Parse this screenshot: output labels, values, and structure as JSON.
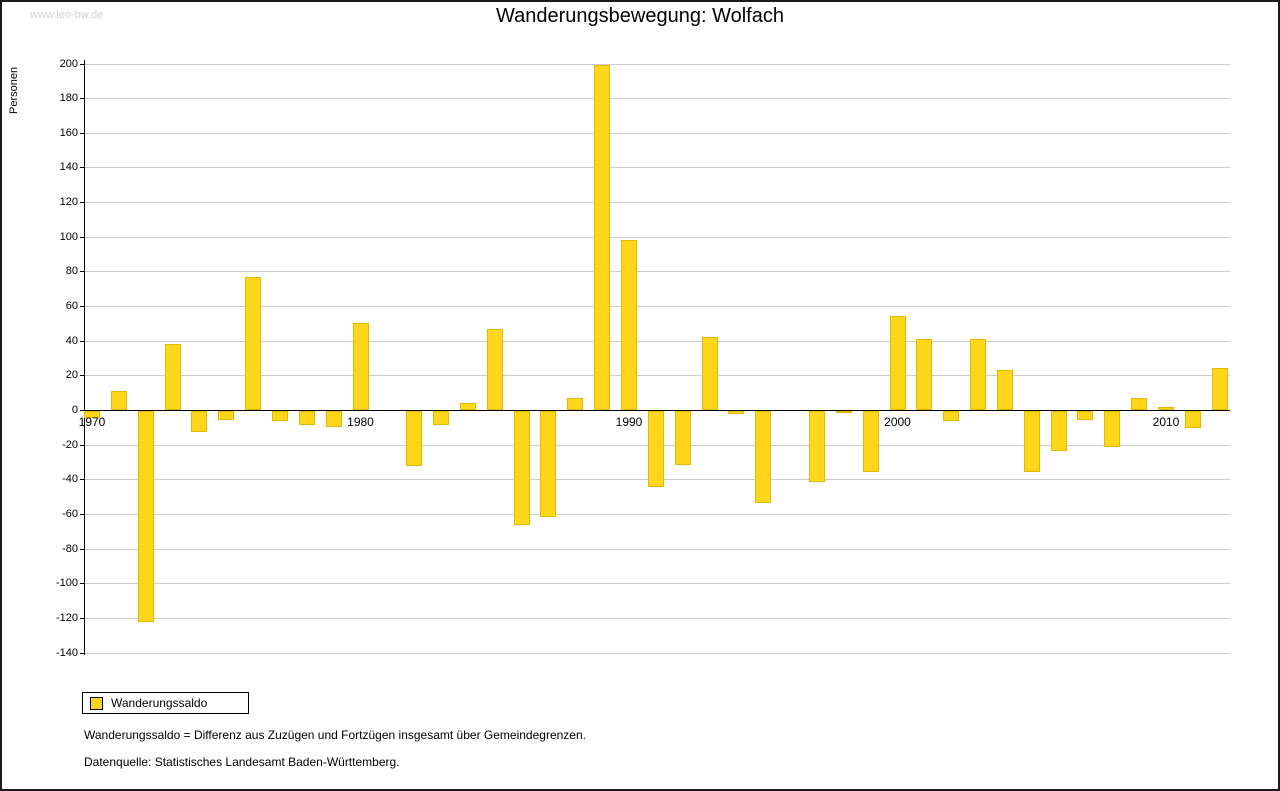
{
  "watermark": "www.leo-bw.de",
  "chart_data": {
    "type": "bar",
    "title": "Wanderungsbewegung: Wolfach",
    "ylabel": "Personen",
    "legend": "Wanderungssaldo",
    "bar_color": "#ffd61a",
    "grid": "horizontal",
    "legend_position": "bottom-left",
    "ylim": [
      -140,
      200
    ],
    "ytick_step": 20,
    "xticks": [
      1970,
      1980,
      1990,
      2000,
      2010
    ],
    "years": [
      1970,
      1971,
      1972,
      1973,
      1974,
      1975,
      1976,
      1977,
      1978,
      1979,
      1980,
      1981,
      1982,
      1983,
      1984,
      1985,
      1986,
      1987,
      1988,
      1989,
      1990,
      1991,
      1992,
      1993,
      1994,
      1995,
      1996,
      1997,
      1998,
      1999,
      2000,
      2001,
      2002,
      2003,
      2004,
      2005,
      2006,
      2007,
      2008,
      2009,
      2010,
      2011,
      2012
    ],
    "values": [
      -4,
      11,
      -122,
      38,
      -12,
      -5,
      77,
      -6,
      -8,
      -9,
      50,
      0,
      -32,
      -8,
      4,
      47,
      -66,
      -61,
      7,
      199,
      98,
      -44,
      -31,
      42,
      -2,
      -53,
      0,
      -41,
      -1,
      -35,
      54,
      41,
      -6,
      41,
      23,
      -35,
      -23,
      -5,
      -21,
      7,
      2,
      -10,
      24
    ]
  },
  "legend": {
    "label": "Wanderungssaldo"
  },
  "notes": {
    "definition": "Wanderungssaldo = Differenz aus Zuzügen und Fortzügen insgesamt über Gemeindegrenzen.",
    "source": "Datenquelle: Statistisches Landesamt Baden-Württemberg."
  }
}
